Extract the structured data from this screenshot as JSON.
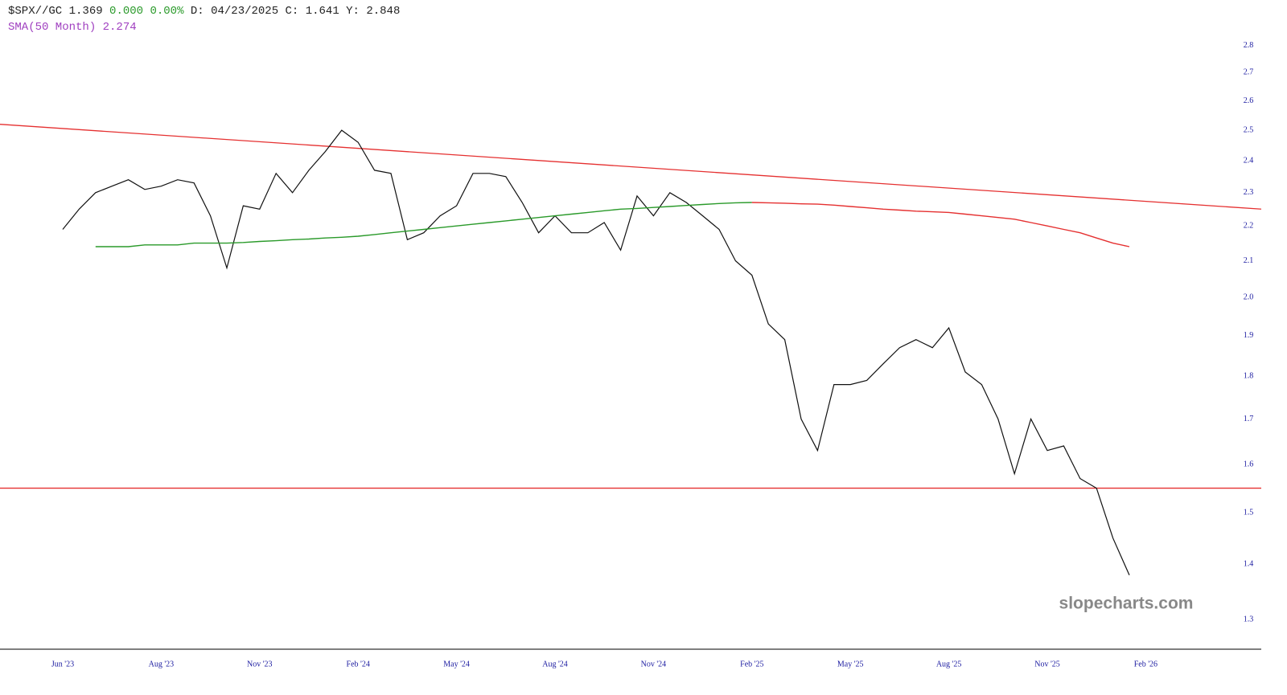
{
  "header": {
    "symbol": "$SPX//GC",
    "last": "1.369",
    "change": "0.000",
    "percent": "0.00%",
    "date": "D: 04/23/2025",
    "c": "C: 1.641",
    "y": "Y: 2.848",
    "sma": "SMA(50 Month) 2.274"
  },
  "chart_data": {
    "type": "line",
    "log_scale": true,
    "categories": [
      "Jun '23",
      null,
      null,
      null,
      null,
      null,
      "Aug '23",
      null,
      null,
      null,
      null,
      null,
      "Nov '23",
      null,
      null,
      null,
      null,
      null,
      "Feb '24",
      null,
      null,
      null,
      null,
      null,
      "May '24",
      null,
      null,
      null,
      null,
      null,
      "Aug '24",
      null,
      null,
      null,
      null,
      null,
      "Nov '24",
      null,
      null,
      null,
      null,
      null,
      "Feb '25",
      null,
      null,
      null,
      null,
      null,
      "May '25",
      null,
      null,
      null,
      null,
      null,
      "Aug '25",
      null,
      null,
      null,
      null,
      null,
      "Nov '25",
      null,
      null,
      null,
      null,
      null,
      "Feb '26"
    ],
    "series": [
      {
        "color": "#111111",
        "values": [
          2.19,
          2.25,
          2.3,
          2.32,
          2.34,
          2.31,
          2.32,
          2.34,
          2.33,
          2.23,
          2.08,
          2.26,
          2.25,
          2.36,
          2.3,
          2.37,
          2.43,
          2.5,
          2.46,
          2.37,
          2.36,
          2.16,
          2.18,
          2.23,
          2.26,
          2.36,
          2.36,
          2.35,
          2.27,
          2.18,
          2.23,
          2.18,
          2.18,
          2.21,
          2.13,
          2.29,
          2.23,
          2.3,
          2.27,
          2.23,
          2.19,
          2.1,
          2.06,
          1.93,
          1.89,
          1.7,
          1.63,
          1.78,
          1.78,
          1.79,
          1.83,
          1.87,
          1.89,
          1.87,
          1.92,
          1.81,
          1.78,
          1.7,
          1.58,
          1.7,
          1.63,
          1.64,
          1.57,
          1.55,
          1.45,
          1.38,
          null
        ]
      },
      {
        "color": "#2a9a2a",
        "values": [
          null,
          null,
          2.14,
          2.14,
          2.14,
          2.145,
          2.145,
          2.145,
          2.15,
          2.15,
          2.15,
          2.152,
          2.155,
          2.157,
          2.16,
          2.162,
          2.165,
          2.167,
          2.17,
          2.175,
          2.18,
          2.185,
          2.19,
          2.195,
          2.2,
          2.205,
          2.21,
          2.215,
          2.22,
          2.225,
          2.23,
          2.235,
          2.24,
          2.245,
          2.25,
          2.252,
          2.255,
          2.258,
          2.261,
          2.264,
          2.267,
          2.269,
          2.27,
          null,
          null,
          null,
          null,
          null,
          null,
          null,
          null,
          null,
          null,
          null,
          null,
          null,
          null,
          null,
          null,
          null,
          null,
          null,
          null,
          null,
          null,
          null,
          null
        ]
      },
      {
        "color": "#e53030",
        "values": [
          null,
          null,
          null,
          null,
          null,
          null,
          null,
          null,
          null,
          null,
          null,
          null,
          null,
          null,
          null,
          null,
          null,
          null,
          null,
          null,
          null,
          null,
          null,
          null,
          null,
          null,
          null,
          null,
          null,
          null,
          null,
          null,
          null,
          null,
          null,
          null,
          null,
          null,
          null,
          null,
          null,
          null,
          2.27,
          2.269,
          2.268,
          2.266,
          2.265,
          2.262,
          2.258,
          2.254,
          2.25,
          2.247,
          2.244,
          2.242,
          2.24,
          2.235,
          2.23,
          2.225,
          2.22,
          2.21,
          2.2,
          2.19,
          2.18,
          2.165,
          2.15,
          2.14,
          null
        ]
      }
    ],
    "trendline": {
      "start": 2.52,
      "end": 2.25,
      "color": "#e53030"
    },
    "hline": {
      "value": 1.55,
      "color": "#e53030"
    },
    "ylim": [
      1.25,
      2.85
    ],
    "yticks": [
      {
        "value": 1.3,
        "label": "1.3"
      },
      1.4,
      1.5,
      1.6,
      1.7,
      1.8,
      1.9,
      {
        "value": 2.0,
        "label": "2.0"
      },
      2.1,
      2.2,
      2.3,
      2.4,
      2.5,
      2.6,
      2.7,
      2.8
    ],
    "watermark": "slopecharts.com"
  }
}
